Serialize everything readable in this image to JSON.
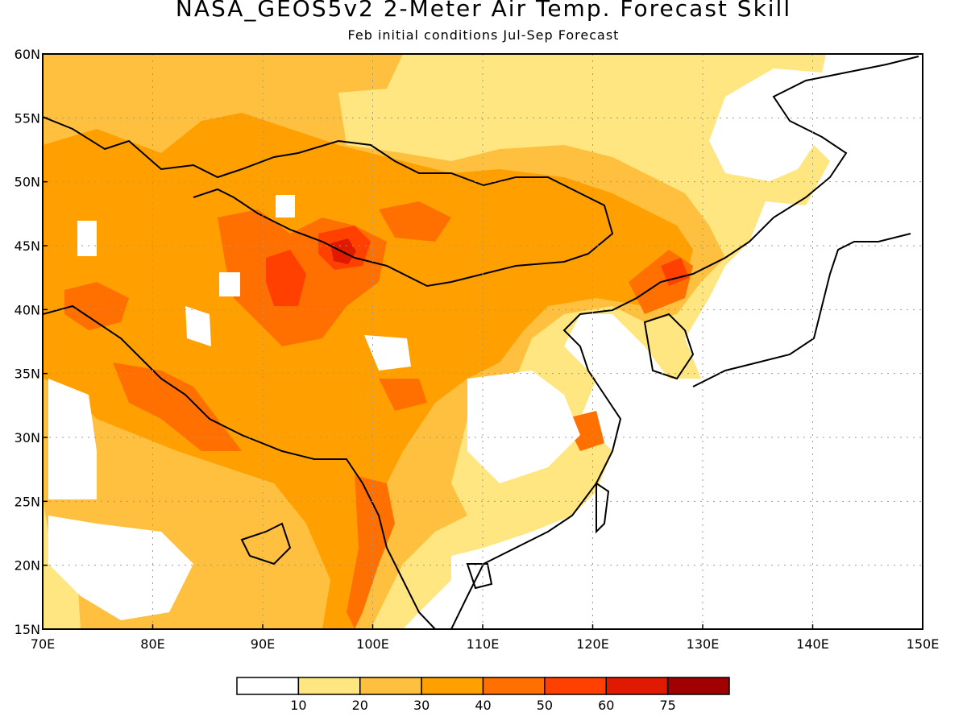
{
  "title": "NASA_GEOS5v2 2-Meter Air Temp. Forecast Skill",
  "subtitle": "Feb initial conditions  Jul-Sep Forecast",
  "map": {
    "lon_range": [
      70,
      150
    ],
    "lat_range": [
      15,
      60
    ],
    "lon_ticks": [
      70,
      80,
      90,
      100,
      110,
      120,
      130,
      140,
      150
    ],
    "lon_labels": [
      "70E",
      "80E",
      "90E",
      "100E",
      "110E",
      "120E",
      "130E",
      "140E",
      "150E"
    ],
    "lat_ticks": [
      15,
      20,
      25,
      30,
      35,
      40,
      45,
      50,
      55,
      60
    ],
    "lat_labels": [
      "15N",
      "20N",
      "25N",
      "30N",
      "35N",
      "40N",
      "45N",
      "50N",
      "55N",
      "60N"
    ],
    "grid": "dotted"
  },
  "colorbar": {
    "labels": [
      "10",
      "20",
      "30",
      "40",
      "50",
      "60",
      "75"
    ],
    "colors": [
      "#ffffff",
      "#ffe680",
      "#ffc040",
      "#ffa000",
      "#ff7000",
      "#ff4000",
      "#e01a00",
      "#a00000"
    ]
  }
}
